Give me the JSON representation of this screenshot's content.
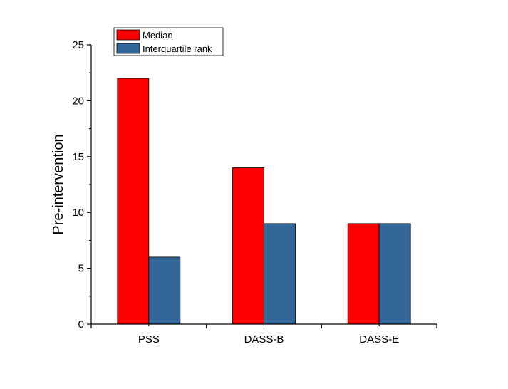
{
  "chart_data": {
    "type": "bar",
    "title": "",
    "xlabel": "",
    "ylabel": "Pre-intervention",
    "categories": [
      "PSS",
      "DASS-B",
      "DASS-E"
    ],
    "series": [
      {
        "name": "Median",
        "values": [
          22,
          14,
          9
        ],
        "color": "#ff0000"
      },
      {
        "name": "Interquartile rank",
        "values": [
          6,
          9,
          9
        ],
        "color": "#336699"
      }
    ],
    "ylim": [
      0,
      25
    ],
    "yticks": [
      0,
      5,
      10,
      15,
      20,
      25
    ],
    "grid": false,
    "legend_position": "top-left"
  }
}
